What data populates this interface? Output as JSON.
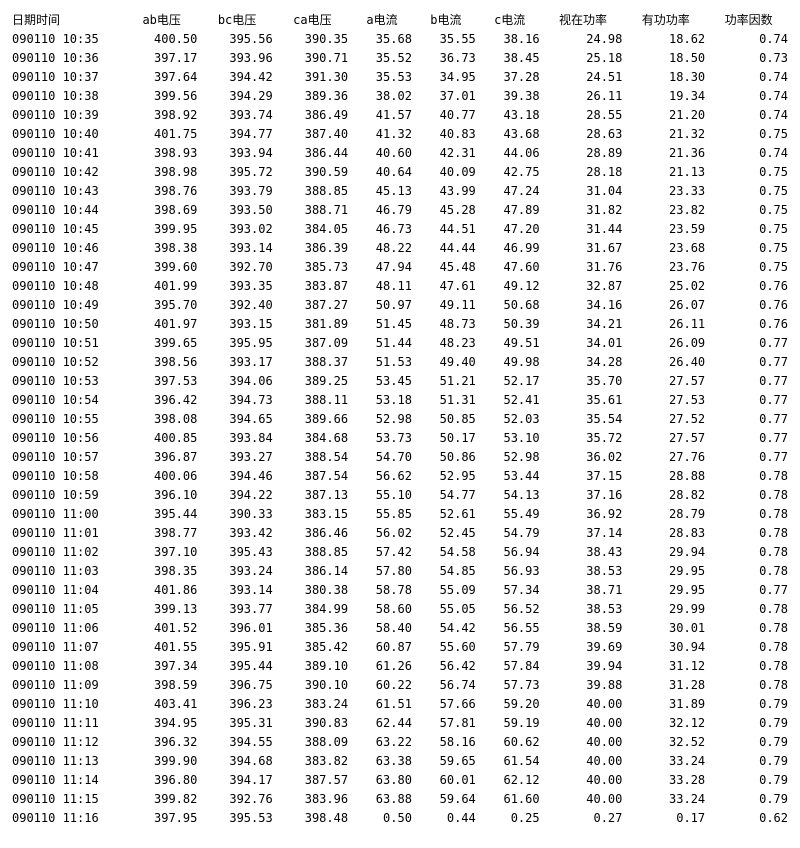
{
  "columns": [
    "日期时间",
    "ab电压",
    "bc电压",
    "ca电压",
    "a电流",
    "b电流",
    "c电流",
    "视在功率",
    "有功功率",
    "功率因数"
  ],
  "rows": [
    [
      "090110 10:35",
      "400.50",
      "395.56",
      "390.35",
      "35.68",
      "35.55",
      "38.16",
      "24.98",
      "18.62",
      "0.74"
    ],
    [
      "090110 10:36",
      "397.17",
      "393.96",
      "390.71",
      "35.52",
      "36.73",
      "38.45",
      "25.18",
      "18.50",
      "0.73"
    ],
    [
      "090110 10:37",
      "397.64",
      "394.42",
      "391.30",
      "35.53",
      "34.95",
      "37.28",
      "24.51",
      "18.30",
      "0.74"
    ],
    [
      "090110 10:38",
      "399.56",
      "394.29",
      "389.36",
      "38.02",
      "37.01",
      "39.38",
      "26.11",
      "19.34",
      "0.74"
    ],
    [
      "090110 10:39",
      "398.92",
      "393.74",
      "386.49",
      "41.57",
      "40.77",
      "43.18",
      "28.55",
      "21.20",
      "0.74"
    ],
    [
      "090110 10:40",
      "401.75",
      "394.77",
      "387.40",
      "41.32",
      "40.83",
      "43.68",
      "28.63",
      "21.32",
      "0.75"
    ],
    [
      "090110 10:41",
      "398.93",
      "393.94",
      "386.44",
      "40.60",
      "42.31",
      "44.06",
      "28.89",
      "21.36",
      "0.74"
    ],
    [
      "090110 10:42",
      "398.98",
      "395.72",
      "390.59",
      "40.64",
      "40.09",
      "42.75",
      "28.18",
      "21.13",
      "0.75"
    ],
    [
      "090110 10:43",
      "398.76",
      "393.79",
      "388.85",
      "45.13",
      "43.99",
      "47.24",
      "31.04",
      "23.33",
      "0.75"
    ],
    [
      "090110 10:44",
      "398.69",
      "393.50",
      "388.71",
      "46.79",
      "45.28",
      "47.89",
      "31.82",
      "23.82",
      "0.75"
    ],
    [
      "090110 10:45",
      "399.95",
      "393.02",
      "384.05",
      "46.73",
      "44.51",
      "47.20",
      "31.44",
      "23.59",
      "0.75"
    ],
    [
      "090110 10:46",
      "398.38",
      "393.14",
      "386.39",
      "48.22",
      "44.44",
      "46.99",
      "31.67",
      "23.68",
      "0.75"
    ],
    [
      "090110 10:47",
      "399.60",
      "392.70",
      "385.73",
      "47.94",
      "45.48",
      "47.60",
      "31.76",
      "23.76",
      "0.75"
    ],
    [
      "090110 10:48",
      "401.99",
      "393.35",
      "383.87",
      "48.11",
      "47.61",
      "49.12",
      "32.87",
      "25.02",
      "0.76"
    ],
    [
      "090110 10:49",
      "395.70",
      "392.40",
      "387.27",
      "50.97",
      "49.11",
      "50.68",
      "34.16",
      "26.07",
      "0.76"
    ],
    [
      "090110 10:50",
      "401.97",
      "393.15",
      "381.89",
      "51.45",
      "48.73",
      "50.39",
      "34.21",
      "26.11",
      "0.76"
    ],
    [
      "090110 10:51",
      "399.65",
      "395.95",
      "387.09",
      "51.44",
      "48.23",
      "49.51",
      "34.01",
      "26.09",
      "0.77"
    ],
    [
      "090110 10:52",
      "398.56",
      "393.17",
      "388.37",
      "51.53",
      "49.40",
      "49.98",
      "34.28",
      "26.40",
      "0.77"
    ],
    [
      "090110 10:53",
      "397.53",
      "394.06",
      "389.25",
      "53.45",
      "51.21",
      "52.17",
      "35.70",
      "27.57",
      "0.77"
    ],
    [
      "090110 10:54",
      "396.42",
      "394.73",
      "388.11",
      "53.18",
      "51.31",
      "52.41",
      "35.61",
      "27.53",
      "0.77"
    ],
    [
      "090110 10:55",
      "398.08",
      "394.65",
      "389.66",
      "52.98",
      "50.85",
      "52.03",
      "35.54",
      "27.52",
      "0.77"
    ],
    [
      "090110 10:56",
      "400.85",
      "393.84",
      "384.68",
      "53.73",
      "50.17",
      "53.10",
      "35.72",
      "27.57",
      "0.77"
    ],
    [
      "090110 10:57",
      "396.87",
      "393.27",
      "388.54",
      "54.70",
      "50.86",
      "52.98",
      "36.02",
      "27.76",
      "0.77"
    ],
    [
      "090110 10:58",
      "400.06",
      "394.46",
      "387.54",
      "56.62",
      "52.95",
      "53.44",
      "37.15",
      "28.88",
      "0.78"
    ],
    [
      "090110 10:59",
      "396.10",
      "394.22",
      "387.13",
      "55.10",
      "54.77",
      "54.13",
      "37.16",
      "28.82",
      "0.78"
    ],
    [
      "090110 11:00",
      "395.44",
      "390.33",
      "383.15",
      "55.85",
      "52.61",
      "55.49",
      "36.92",
      "28.79",
      "0.78"
    ],
    [
      "090110 11:01",
      "398.77",
      "393.42",
      "386.46",
      "56.02",
      "52.45",
      "54.79",
      "37.14",
      "28.83",
      "0.78"
    ],
    [
      "090110 11:02",
      "397.10",
      "395.43",
      "388.85",
      "57.42",
      "54.58",
      "56.94",
      "38.43",
      "29.94",
      "0.78"
    ],
    [
      "090110 11:03",
      "398.35",
      "393.24",
      "386.14",
      "57.80",
      "54.85",
      "56.93",
      "38.53",
      "29.95",
      "0.78"
    ],
    [
      "090110 11:04",
      "401.86",
      "393.14",
      "380.38",
      "58.78",
      "55.09",
      "57.34",
      "38.71",
      "29.95",
      "0.77"
    ],
    [
      "090110 11:05",
      "399.13",
      "393.77",
      "384.99",
      "58.60",
      "55.05",
      "56.52",
      "38.53",
      "29.99",
      "0.78"
    ],
    [
      "090110 11:06",
      "401.52",
      "396.01",
      "385.36",
      "58.40",
      "54.42",
      "56.55",
      "38.59",
      "30.01",
      "0.78"
    ],
    [
      "090110 11:07",
      "401.55",
      "395.91",
      "385.42",
      "60.87",
      "55.60",
      "57.79",
      "39.69",
      "30.94",
      "0.78"
    ],
    [
      "090110 11:08",
      "397.34",
      "395.44",
      "389.10",
      "61.26",
      "56.42",
      "57.84",
      "39.94",
      "31.12",
      "0.78"
    ],
    [
      "090110 11:09",
      "398.59",
      "396.75",
      "390.10",
      "60.22",
      "56.74",
      "57.73",
      "39.88",
      "31.28",
      "0.78"
    ],
    [
      "090110 11:10",
      "403.41",
      "396.23",
      "383.24",
      "61.51",
      "57.66",
      "59.20",
      "40.00",
      "31.89",
      "0.79"
    ],
    [
      "090110 11:11",
      "394.95",
      "395.31",
      "390.83",
      "62.44",
      "57.81",
      "59.19",
      "40.00",
      "32.12",
      "0.79"
    ],
    [
      "090110 11:12",
      "396.32",
      "394.55",
      "388.09",
      "63.22",
      "58.16",
      "60.62",
      "40.00",
      "32.52",
      "0.79"
    ],
    [
      "090110 11:13",
      "399.90",
      "394.68",
      "383.82",
      "63.38",
      "59.65",
      "61.54",
      "40.00",
      "33.24",
      "0.79"
    ],
    [
      "090110 11:14",
      "396.80",
      "394.17",
      "387.57",
      "63.80",
      "60.01",
      "62.12",
      "40.00",
      "33.28",
      "0.79"
    ],
    [
      "090110 11:15",
      "399.82",
      "392.76",
      "383.96",
      "63.88",
      "59.64",
      "61.60",
      "40.00",
      "33.24",
      "0.79"
    ],
    [
      "090110 11:16",
      "397.95",
      "395.53",
      "398.48",
      "0.50",
      "0.44",
      "0.25",
      "0.27",
      "0.17",
      "0.62"
    ]
  ]
}
